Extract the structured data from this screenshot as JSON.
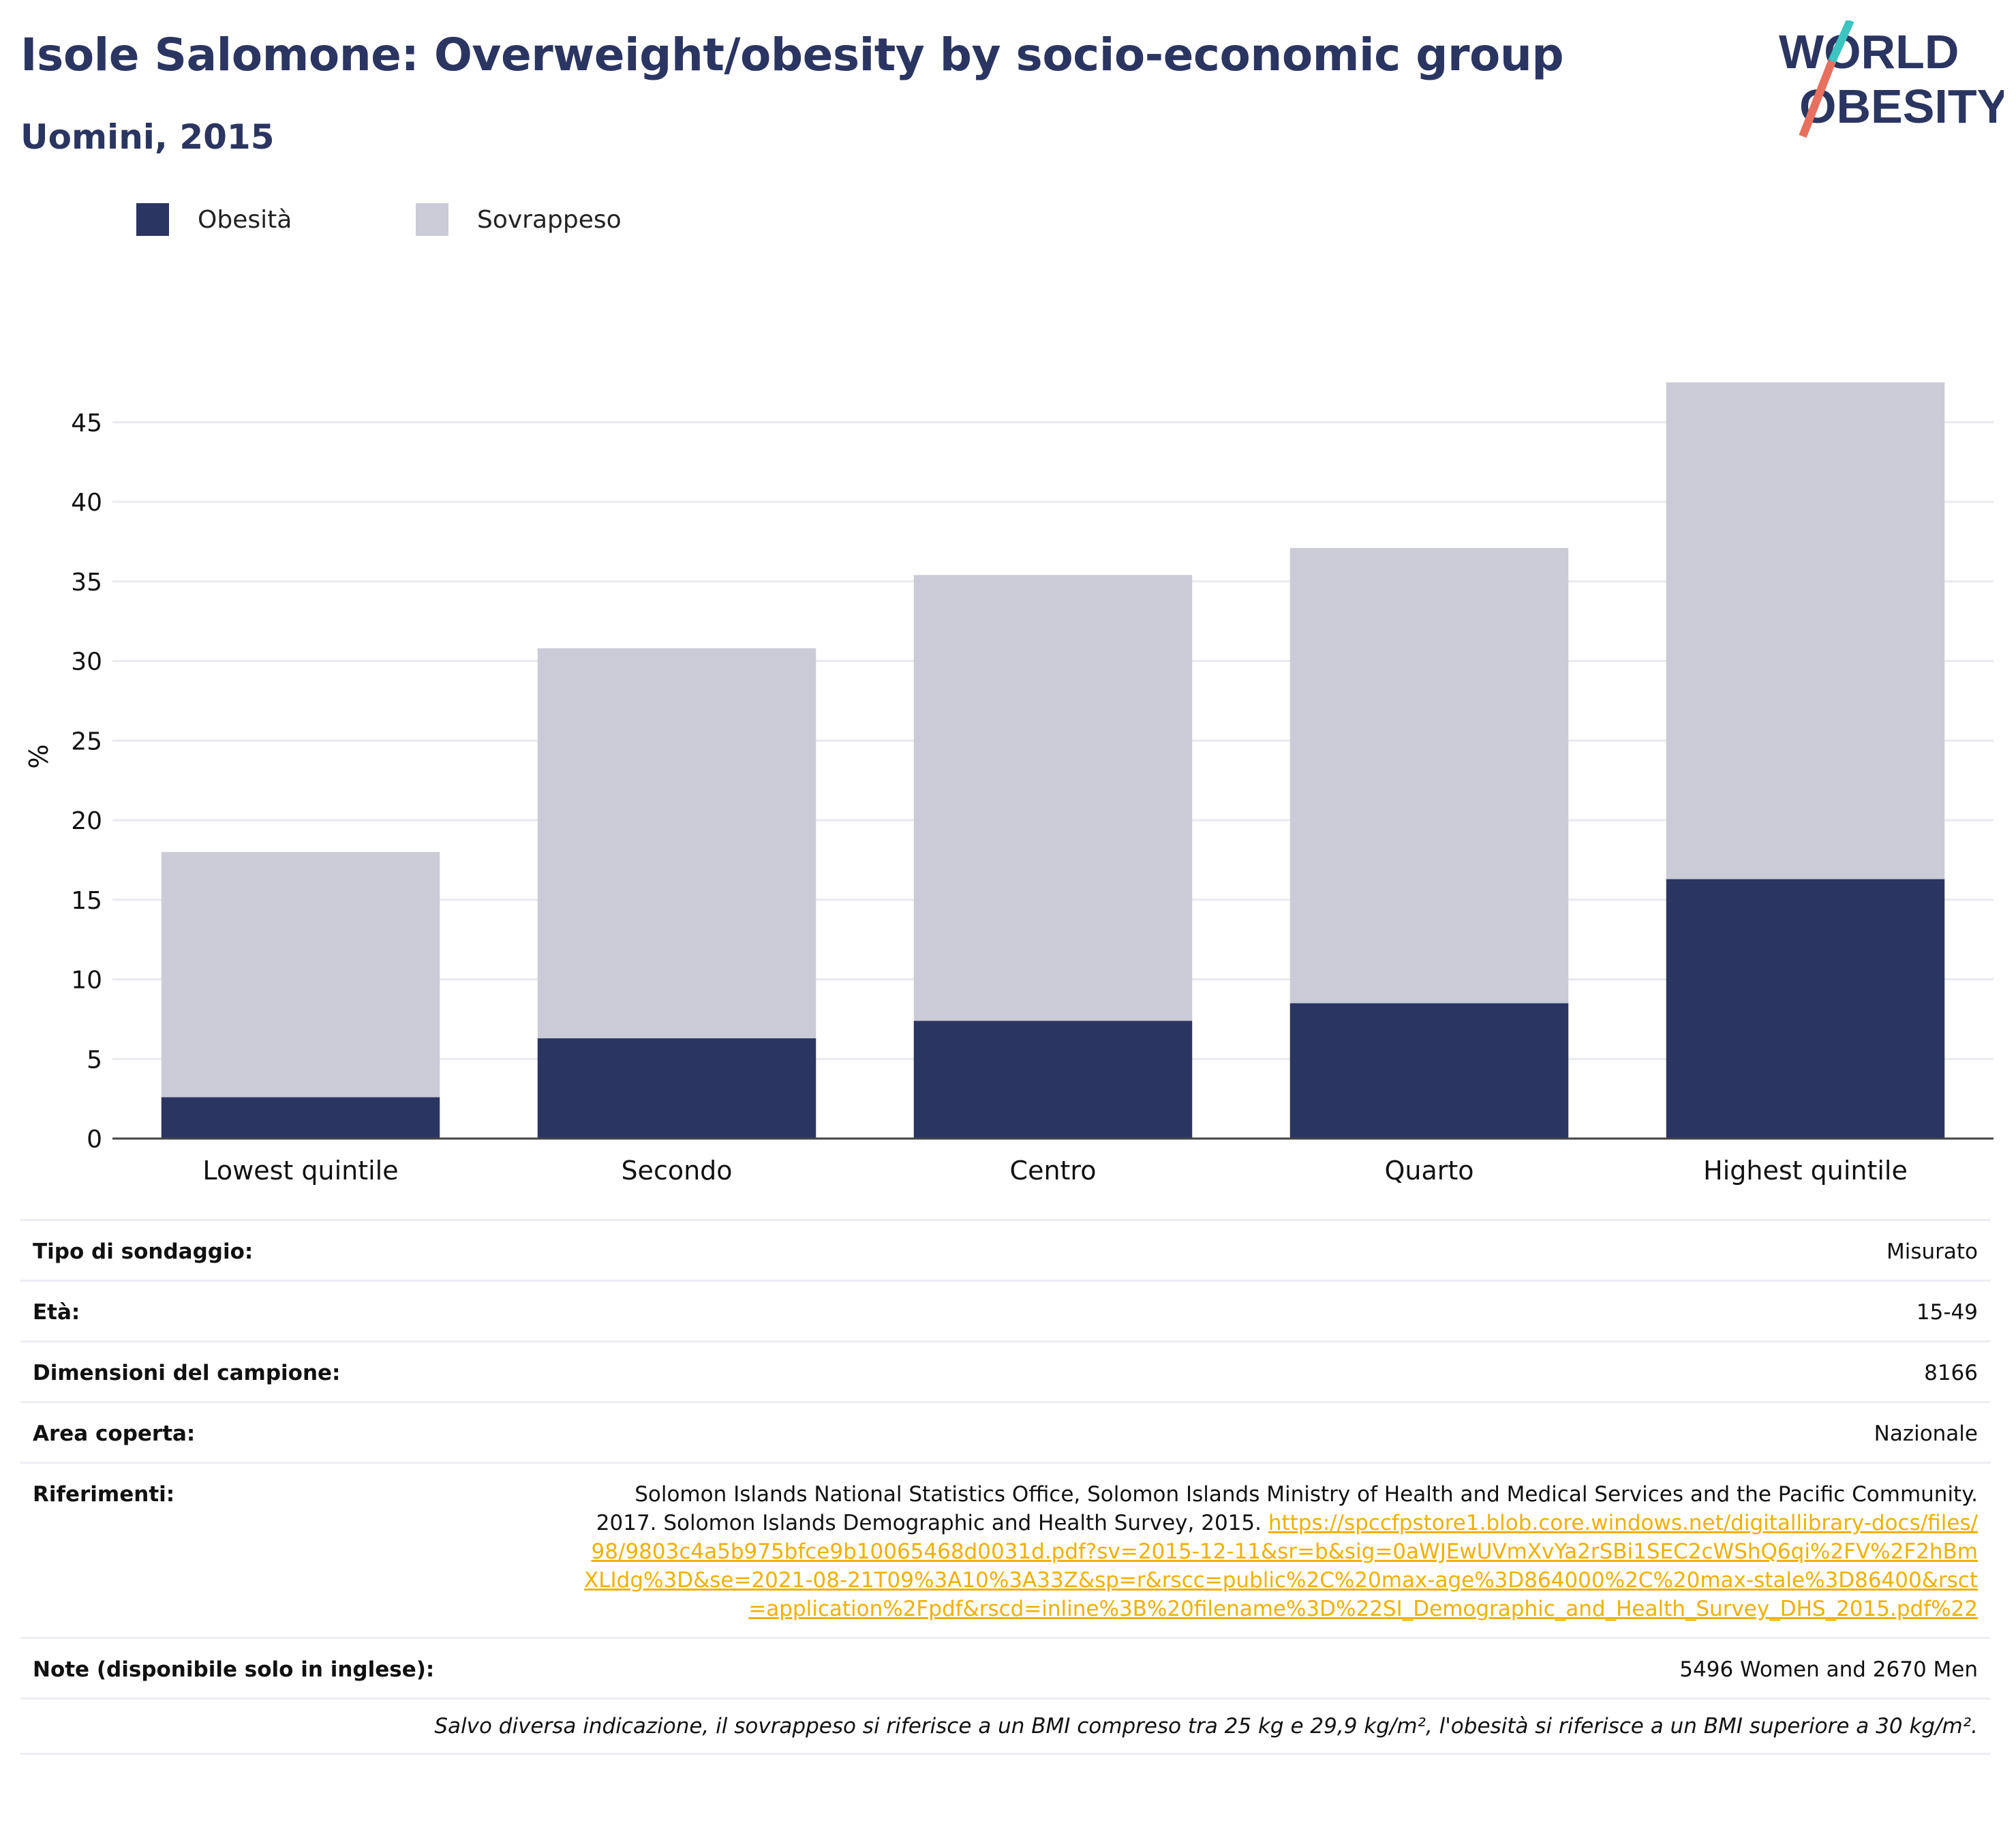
{
  "title": "Isole Salomone: Overweight/obesity by socio-economic group",
  "subtitle": "Uomini, 2015",
  "logo": {
    "line1": "WORLD",
    "line2": "OBESITY"
  },
  "colors": {
    "obesity": "#2b3562",
    "overweight": "#cacbd6",
    "title": "#2b3561",
    "link": "#f0b000",
    "logo_slash_top": "#3cc4c0",
    "logo_slash_bottom": "#e8705f"
  },
  "legend": [
    {
      "label": "Obesità",
      "color": "#2b3562"
    },
    {
      "label": "Sovrappeso",
      "color": "#cacbd6"
    }
  ],
  "chart_data": {
    "type": "bar",
    "stacked": true,
    "ylabel": "%",
    "ylim": [
      0,
      48
    ],
    "yticks": [
      0,
      5,
      10,
      15,
      20,
      25,
      30,
      35,
      40,
      45
    ],
    "grid": true,
    "legend_position": "top-left",
    "categories": [
      "Lowest quintile",
      "Secondo",
      "Centro",
      "Quarto",
      "Highest quintile"
    ],
    "series": [
      {
        "name": "Obesità",
        "values": [
          2.6,
          6.3,
          7.4,
          8.5,
          16.3
        ]
      },
      {
        "name": "Sovrappeso",
        "values": [
          15.4,
          24.5,
          28.0,
          28.6,
          31.2
        ]
      }
    ]
  },
  "meta": [
    {
      "label": "Tipo di sondaggio:",
      "value": "Misurato"
    },
    {
      "label": "Età:",
      "value": "15-49"
    },
    {
      "label": "Dimensioni del campione:",
      "value": "8166"
    },
    {
      "label": "Area coperta:",
      "value": "Nazionale"
    }
  ],
  "references": {
    "label": "Riferimenti:",
    "text": "Solomon Islands National Statistics Office, Solomon Islands Ministry of Health and Medical Services and the Pacific Community. 2017. Solomon Islands Demographic and Health Survey, 2015.",
    "link": "https://spccfpstore1.blob.core.windows.net/digitallibrary-docs/files/98/9803c4a5b975bfce9b10065468d0031d.pdf?sv=2015-12-11&sr=b&sig=0aWJEwUVmXvYa2rSBi1SEC2cWShQ6qi%2FV%2F2hBmXLIdg%3D&se=2021-08-21T09%3A10%3A33Z&sp=r&rscc=public%2C%20max-age%3D864000%2C%20max-stale%3D86400&rsct=application%2Fpdf&rscd=inline%3B%20filename%3D%22SI_Demographic_and_Health_Survey_DHS_2015.pdf%22"
  },
  "notes": {
    "label": "Note (disponibile solo in inglese):",
    "value": "5496 Women and 2670 Men"
  },
  "footnote": "Salvo diversa indicazione, il sovrappeso si riferisce a un BMI compreso tra 25 kg e 29,9 kg/m², l'obesità si riferisce a un BMI superiore a 30 kg/m²."
}
